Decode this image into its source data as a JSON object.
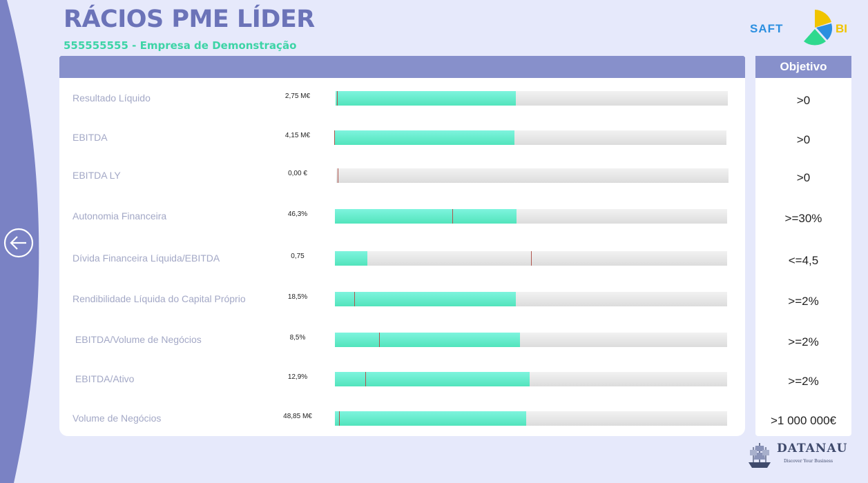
{
  "header": {
    "title": "RÁCIOS PME LÍDER",
    "subtitle": "555555555 - Empresa de Demonstração"
  },
  "logo": {
    "left_text": "SAFT",
    "right_text": "BI"
  },
  "objective_header": "Objetivo",
  "rows": [
    {
      "label": "Resultado Líquido",
      "value": "2,75 M€",
      "objective": ">0",
      "fill_fraction": 0.46,
      "marker_fraction": 0.004
    },
    {
      "label": "EBITDA",
      "value": "4,15 M€",
      "objective": ">0",
      "fill_fraction": 0.46,
      "marker_fraction": 0.0
    },
    {
      "label": "EBITDA LY",
      "value": "0,00 €",
      "objective": ">0",
      "fill_fraction": 0.0,
      "marker_fraction": 0.004
    },
    {
      "label": "Autonomia Financeira",
      "value": "46,3%",
      "objective": ">=30%",
      "fill_fraction": 0.463,
      "marker_fraction": 0.3
    },
    {
      "label": "Dívida Financeira Líquida/EBITDA",
      "value": "0,75",
      "objective": "<=4,5",
      "fill_fraction": 0.083,
      "marker_fraction": 0.5
    },
    {
      "label": "Rendibilidade Líquida do Capital Próprio",
      "value": "18,5%",
      "objective": ">=2%",
      "fill_fraction": 0.462,
      "marker_fraction": 0.05
    },
    {
      "label": " EBITDA/Volume de Negócios",
      "value": "8,5%",
      "objective": ">=2%",
      "fill_fraction": 0.472,
      "marker_fraction": 0.112
    },
    {
      "label": " EBITDA/Ativo",
      "value": "12,9%",
      "objective": ">=2%",
      "fill_fraction": 0.496,
      "marker_fraction": 0.077
    },
    {
      "label": "Volume de Negócios",
      "value": "48,85 M€",
      "objective": ">1 000 000€",
      "fill_fraction": 0.488,
      "marker_fraction": 0.01
    }
  ],
  "footer_logo": {
    "name": "DATANAU",
    "tagline": "Discover Your Business"
  },
  "colors": {
    "title": "#6b73b8",
    "subtitle": "#3dd4a6",
    "header_bar": "#8790cb",
    "bar_fill": "#5eeacb",
    "bar_track": "#e6e6e6",
    "marker": "#b0544c"
  },
  "icons": {
    "back": "arrow-left-circle-icon"
  }
}
